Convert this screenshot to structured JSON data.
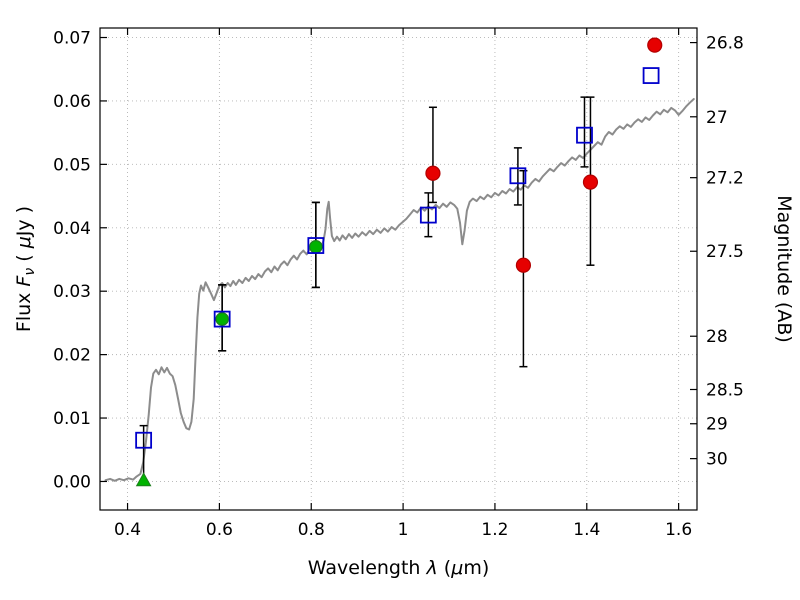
{
  "figure": {
    "background": "#ffffff"
  },
  "chart_data": {
    "type": "line",
    "title": "",
    "xlabel_parts": [
      {
        "t": "Wavelength  ",
        "i": false
      },
      {
        "t": "λ",
        "i": true
      },
      {
        "t": "  (",
        "i": false
      },
      {
        "t": "μ",
        "i": true
      },
      {
        "t": "m)",
        "i": false
      }
    ],
    "ylabel_left_parts": [
      {
        "t": "Flux  ",
        "i": false
      },
      {
        "t": "F",
        "i": true
      },
      {
        "t": "ν",
        "i": true,
        "sub": true
      },
      {
        "t": "  ( ",
        "i": false
      },
      {
        "t": "μ",
        "i": true
      },
      {
        "t": "Jy )",
        "i": false
      }
    ],
    "ylabel_right_parts": [
      {
        "t": "Magnitude (AB)",
        "i": false
      }
    ],
    "xlim": [
      0.34,
      1.64
    ],
    "ylim": [
      -0.0045,
      0.0715
    ],
    "grid": {
      "show": true,
      "color": "#b3b3b3",
      "style": "dotted"
    },
    "axis_color": "#000000",
    "x_ticks": [
      {
        "v": 0.4,
        "label": "0.4"
      },
      {
        "v": 0.6,
        "label": "0.6"
      },
      {
        "v": 0.8,
        "label": "0.8"
      },
      {
        "v": 1.0,
        "label": "1"
      },
      {
        "v": 1.2,
        "label": "1.2"
      },
      {
        "v": 1.4,
        "label": "1.4"
      },
      {
        "v": 1.6,
        "label": "1.6"
      }
    ],
    "y_ticks_left": [
      {
        "v": 0.0,
        "label": "0.00"
      },
      {
        "v": 0.01,
        "label": "0.01"
      },
      {
        "v": 0.02,
        "label": "0.02"
      },
      {
        "v": 0.03,
        "label": "0.03"
      },
      {
        "v": 0.04,
        "label": "0.04"
      },
      {
        "v": 0.05,
        "label": "0.05"
      },
      {
        "v": 0.06,
        "label": "0.06"
      },
      {
        "v": 0.07,
        "label": "0.07"
      }
    ],
    "y_ticks_right": [
      {
        "flux": 0.0692,
        "label": "26.8"
      },
      {
        "flux": 0.0575,
        "label": "27"
      },
      {
        "flux": 0.0479,
        "label": "27.2"
      },
      {
        "flux": 0.0363,
        "label": "27.5"
      },
      {
        "flux": 0.0229,
        "label": "28"
      },
      {
        "flux": 0.0145,
        "label": "28.5"
      },
      {
        "flux": 0.0091,
        "label": "29"
      },
      {
        "flux": 0.0036,
        "label": "30"
      }
    ],
    "series": [
      {
        "name": "model-spectrum",
        "kind": "line",
        "color": "#8c8c8c",
        "width": 2,
        "points": [
          [
            0.352,
            0.0002
          ],
          [
            0.362,
            0.0004
          ],
          [
            0.372,
            0.0001
          ],
          [
            0.382,
            0.0004
          ],
          [
            0.392,
            0.0002
          ],
          [
            0.402,
            0.0005
          ],
          [
            0.412,
            0.0003
          ],
          [
            0.42,
            0.0008
          ],
          [
            0.428,
            0.0012
          ],
          [
            0.434,
            0.003
          ],
          [
            0.44,
            0.0062
          ],
          [
            0.446,
            0.0105
          ],
          [
            0.451,
            0.0148
          ],
          [
            0.456,
            0.017
          ],
          [
            0.462,
            0.0176
          ],
          [
            0.468,
            0.0169
          ],
          [
            0.474,
            0.018
          ],
          [
            0.48,
            0.0172
          ],
          [
            0.486,
            0.0179
          ],
          [
            0.492,
            0.017
          ],
          [
            0.498,
            0.0166
          ],
          [
            0.504,
            0.0152
          ],
          [
            0.51,
            0.013
          ],
          [
            0.516,
            0.0108
          ],
          [
            0.522,
            0.0094
          ],
          [
            0.528,
            0.0084
          ],
          [
            0.534,
            0.0082
          ],
          [
            0.539,
            0.0094
          ],
          [
            0.544,
            0.013
          ],
          [
            0.548,
            0.0195
          ],
          [
            0.552,
            0.0258
          ],
          [
            0.556,
            0.0296
          ],
          [
            0.56,
            0.0309
          ],
          [
            0.565,
            0.0301
          ],
          [
            0.57,
            0.0314
          ],
          [
            0.576,
            0.0305
          ],
          [
            0.582,
            0.0296
          ],
          [
            0.588,
            0.0286
          ],
          [
            0.594,
            0.0297
          ],
          [
            0.6,
            0.0309
          ],
          [
            0.606,
            0.0313
          ],
          [
            0.612,
            0.0306
          ],
          [
            0.618,
            0.0313
          ],
          [
            0.624,
            0.0308
          ],
          [
            0.63,
            0.0316
          ],
          [
            0.636,
            0.031
          ],
          [
            0.643,
            0.0318
          ],
          [
            0.65,
            0.0313
          ],
          [
            0.657,
            0.0321
          ],
          [
            0.664,
            0.0316
          ],
          [
            0.671,
            0.0324
          ],
          [
            0.678,
            0.0319
          ],
          [
            0.685,
            0.0327
          ],
          [
            0.692,
            0.0322
          ],
          [
            0.699,
            0.0331
          ],
          [
            0.706,
            0.0336
          ],
          [
            0.713,
            0.033
          ],
          [
            0.72,
            0.0339
          ],
          [
            0.727,
            0.0333
          ],
          [
            0.734,
            0.0342
          ],
          [
            0.741,
            0.0347
          ],
          [
            0.748,
            0.0341
          ],
          [
            0.755,
            0.035
          ],
          [
            0.762,
            0.0356
          ],
          [
            0.769,
            0.035
          ],
          [
            0.776,
            0.0359
          ],
          [
            0.783,
            0.0364
          ],
          [
            0.79,
            0.0358
          ],
          [
            0.797,
            0.0367
          ],
          [
            0.804,
            0.0372
          ],
          [
            0.81,
            0.0368
          ],
          [
            0.816,
            0.0374
          ],
          [
            0.822,
            0.037
          ],
          [
            0.827,
            0.038
          ],
          [
            0.831,
            0.0398
          ],
          [
            0.835,
            0.043
          ],
          [
            0.838,
            0.0441
          ],
          [
            0.841,
            0.0415
          ],
          [
            0.845,
            0.0387
          ],
          [
            0.85,
            0.0379
          ],
          [
            0.856,
            0.0386
          ],
          [
            0.862,
            0.038
          ],
          [
            0.868,
            0.0388
          ],
          [
            0.875,
            0.0382
          ],
          [
            0.882,
            0.039
          ],
          [
            0.889,
            0.0384
          ],
          [
            0.896,
            0.0391
          ],
          [
            0.903,
            0.0386
          ],
          [
            0.911,
            0.0393
          ],
          [
            0.919,
            0.0388
          ],
          [
            0.927,
            0.0395
          ],
          [
            0.935,
            0.039
          ],
          [
            0.943,
            0.0397
          ],
          [
            0.951,
            0.0392
          ],
          [
            0.959,
            0.0399
          ],
          [
            0.967,
            0.0394
          ],
          [
            0.975,
            0.0401
          ],
          [
            0.983,
            0.0397
          ],
          [
            0.991,
            0.0404
          ],
          [
            0.999,
            0.0409
          ],
          [
            1.007,
            0.0414
          ],
          [
            1.015,
            0.0421
          ],
          [
            1.023,
            0.0428
          ],
          [
            1.031,
            0.0424
          ],
          [
            1.039,
            0.0432
          ],
          [
            1.047,
            0.0427
          ],
          [
            1.055,
            0.0434
          ],
          [
            1.063,
            0.0429
          ],
          [
            1.071,
            0.0436
          ],
          [
            1.079,
            0.0431
          ],
          [
            1.087,
            0.0438
          ],
          [
            1.095,
            0.0433
          ],
          [
            1.103,
            0.044
          ],
          [
            1.111,
            0.0436
          ],
          [
            1.118,
            0.043
          ],
          [
            1.124,
            0.0408
          ],
          [
            1.129,
            0.0374
          ],
          [
            1.134,
            0.0396
          ],
          [
            1.139,
            0.0427
          ],
          [
            1.145,
            0.0441
          ],
          [
            1.152,
            0.0446
          ],
          [
            1.16,
            0.0442
          ],
          [
            1.168,
            0.0449
          ],
          [
            1.176,
            0.0445
          ],
          [
            1.184,
            0.0452
          ],
          [
            1.192,
            0.0448
          ],
          [
            1.2,
            0.0455
          ],
          [
            1.208,
            0.0451
          ],
          [
            1.216,
            0.0458
          ],
          [
            1.224,
            0.0454
          ],
          [
            1.232,
            0.0461
          ],
          [
            1.24,
            0.0457
          ],
          [
            1.248,
            0.0464
          ],
          [
            1.256,
            0.046
          ],
          [
            1.264,
            0.0467
          ],
          [
            1.272,
            0.0463
          ],
          [
            1.28,
            0.0471
          ],
          [
            1.288,
            0.0477
          ],
          [
            1.296,
            0.0473
          ],
          [
            1.304,
            0.0481
          ],
          [
            1.312,
            0.0487
          ],
          [
            1.32,
            0.0493
          ],
          [
            1.328,
            0.0489
          ],
          [
            1.336,
            0.0496
          ],
          [
            1.344,
            0.0502
          ],
          [
            1.352,
            0.0498
          ],
          [
            1.36,
            0.0505
          ],
          [
            1.368,
            0.0511
          ],
          [
            1.376,
            0.0507
          ],
          [
            1.384,
            0.0514
          ],
          [
            1.392,
            0.051
          ],
          [
            1.4,
            0.0517
          ],
          [
            1.408,
            0.0523
          ],
          [
            1.416,
            0.0529
          ],
          [
            1.424,
            0.0535
          ],
          [
            1.432,
            0.0531
          ],
          [
            1.44,
            0.0544
          ],
          [
            1.448,
            0.0551
          ],
          [
            1.456,
            0.0547
          ],
          [
            1.464,
            0.0555
          ],
          [
            1.472,
            0.056
          ],
          [
            1.48,
            0.0556
          ],
          [
            1.488,
            0.0563
          ],
          [
            1.496,
            0.0559
          ],
          [
            1.504,
            0.0566
          ],
          [
            1.512,
            0.0571
          ],
          [
            1.52,
            0.0567
          ],
          [
            1.528,
            0.0574
          ],
          [
            1.536,
            0.057
          ],
          [
            1.544,
            0.0577
          ],
          [
            1.552,
            0.0583
          ],
          [
            1.56,
            0.0579
          ],
          [
            1.568,
            0.0586
          ],
          [
            1.576,
            0.0582
          ],
          [
            1.584,
            0.0589
          ],
          [
            1.592,
            0.0585
          ],
          [
            1.6,
            0.0578
          ],
          [
            1.608,
            0.0584
          ],
          [
            1.616,
            0.0591
          ],
          [
            1.624,
            0.0597
          ],
          [
            1.633,
            0.0603
          ]
        ]
      },
      {
        "name": "green-circle-photometry",
        "kind": "scatter",
        "marker": "circle",
        "fill": "#00b300",
        "edge": "#1e7d1e",
        "size": 6.2,
        "points": [
          {
            "x": 0.606,
            "y": 0.0256,
            "lo": 0.0206,
            "hi": 0.031
          },
          {
            "x": 0.81,
            "y": 0.037,
            "lo": 0.0306,
            "hi": 0.044
          }
        ]
      },
      {
        "name": "red-circle-photometry",
        "kind": "scatter",
        "marker": "circle",
        "fill": "#e60000",
        "edge": "#b30000",
        "size": 7,
        "points": [
          {
            "x": 1.065,
            "y": 0.0486,
            "lo": 0.044,
            "hi": 0.059
          },
          {
            "x": 1.262,
            "y": 0.0341,
            "lo": 0.0181,
            "hi": 0.049
          },
          {
            "x": 1.408,
            "y": 0.0472,
            "lo": 0.0341,
            "hi": 0.0606
          },
          {
            "x": 1.548,
            "y": 0.0688
          }
        ]
      },
      {
        "name": "blue-square-photometry",
        "kind": "scatter",
        "marker": "open-square",
        "fill": "none",
        "edge": "#0000cc",
        "size": 7.5,
        "points": [
          {
            "x": 0.435,
            "y": 0.0065,
            "lo": 0.0002,
            "hi": 0.0088
          },
          {
            "x": 0.606,
            "y": 0.0256,
            "lo": 0.0206,
            "hi": 0.031
          },
          {
            "x": 0.81,
            "y": 0.0372,
            "lo": 0.0306,
            "hi": 0.044
          },
          {
            "x": 1.055,
            "y": 0.042,
            "lo": 0.0386,
            "hi": 0.0455
          },
          {
            "x": 1.25,
            "y": 0.0482,
            "lo": 0.0436,
            "hi": 0.0526
          },
          {
            "x": 1.395,
            "y": 0.0546,
            "lo": 0.0496,
            "hi": 0.0606
          },
          {
            "x": 1.54,
            "y": 0.064
          }
        ]
      },
      {
        "name": "green-upper-limit-triangle",
        "kind": "scatter",
        "marker": "triangle-up",
        "fill": "#00b300",
        "edge": "#1e7d1e",
        "size": 7,
        "points": [
          {
            "x": 0.435,
            "y": 0.0002
          }
        ]
      }
    ]
  }
}
